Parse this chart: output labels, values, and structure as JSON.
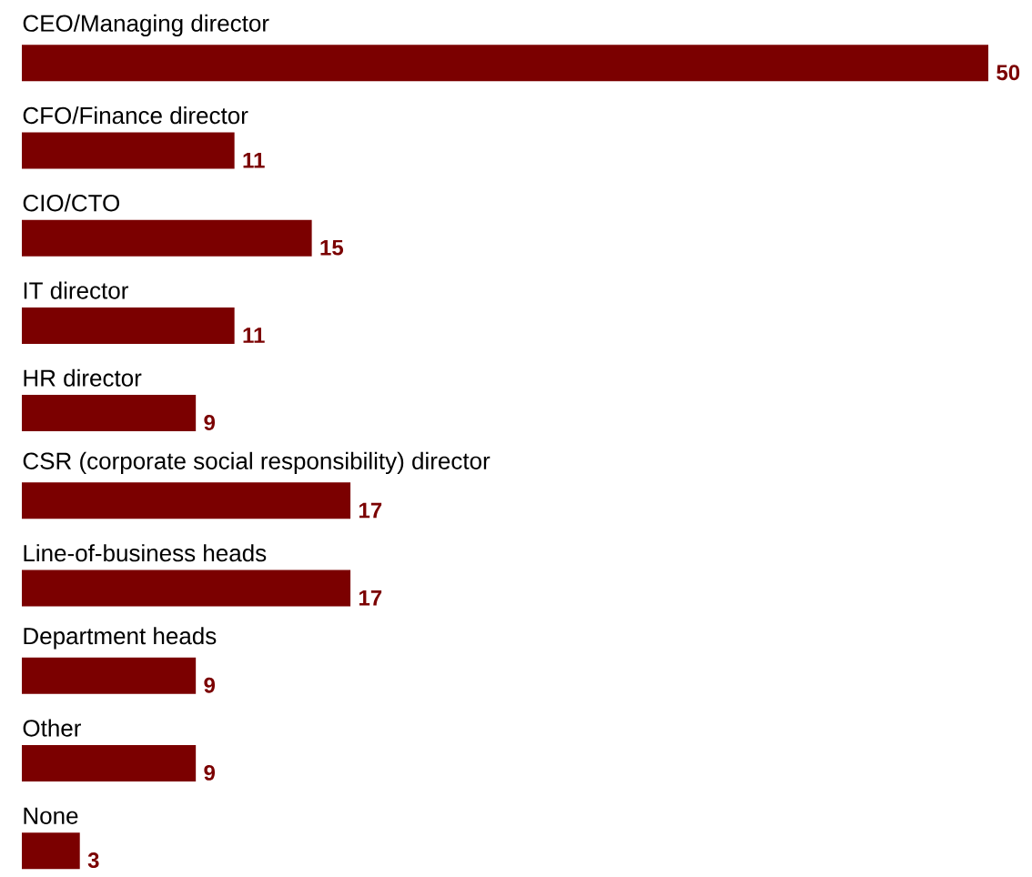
{
  "chart_data": {
    "type": "bar",
    "orientation": "horizontal",
    "categories": [
      "CEO/Managing director",
      "CFO/Finance director",
      "CIO/CTO",
      "IT director",
      "HR director",
      "CSR (corporate social responsibility) director",
      "Line-of-business heads",
      "Department heads",
      "Other",
      "None"
    ],
    "values": [
      50,
      11,
      15,
      11,
      9,
      17,
      17,
      9,
      9,
      3
    ],
    "color": "#7b0000",
    "data_labels": true
  }
}
